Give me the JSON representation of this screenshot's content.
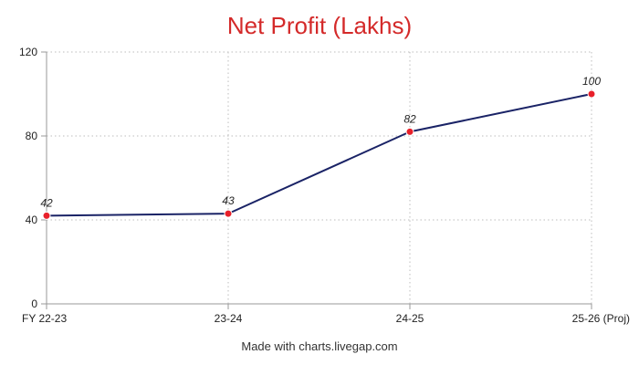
{
  "chart_data": {
    "type": "line",
    "title": "Net Profit (Lakhs)",
    "categories": [
      "FY 22-23",
      "23-24",
      "24-25",
      "25-26 (Proj)"
    ],
    "series": [
      {
        "values": [
          42,
          43,
          82,
          100
        ]
      }
    ],
    "data_labels": [
      "42",
      "43",
      "82",
      "100"
    ],
    "xlabel": "",
    "ylabel": "",
    "ylim": [
      0,
      120
    ],
    "yticks": [
      "0",
      "40",
      "80",
      "120"
    ],
    "grid": true,
    "line_color": "#1a2366",
    "marker_color": "#e8202a",
    "title_color": "#d42a2a"
  },
  "footer": {
    "credit": "Made with charts.livegap.com"
  }
}
